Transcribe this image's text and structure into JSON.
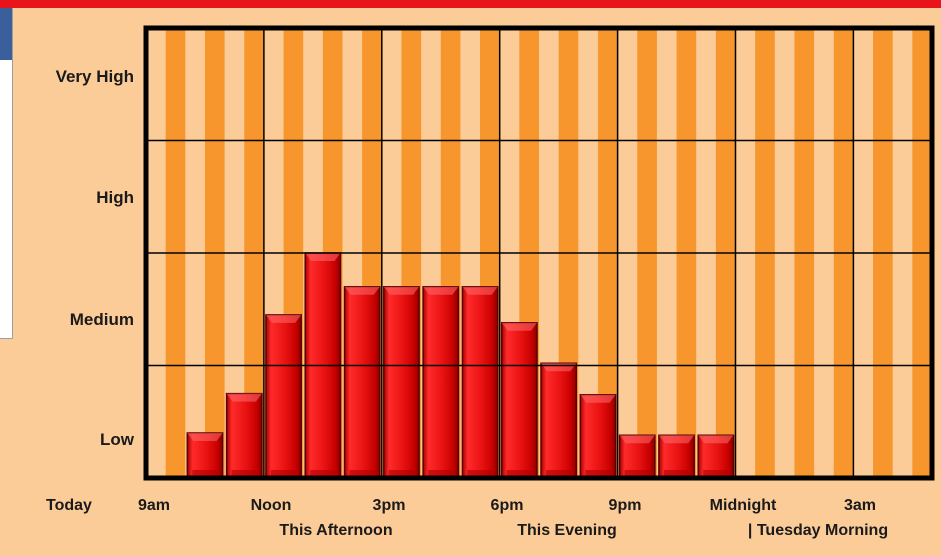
{
  "chart_data": {
    "type": "bar",
    "levels": [
      "Low",
      "Medium",
      "High",
      "Very High"
    ],
    "ylim": [
      0,
      4
    ],
    "y_levels_bottom_to_top": [
      "Low",
      "Medium",
      "High",
      "Very High"
    ],
    "x_start_label": "Today",
    "x_tick_labels": [
      "9am",
      "Noon",
      "3pm",
      "6pm",
      "9pm",
      "Midnight",
      "3am"
    ],
    "x_period_labels": [
      "This Afternoon",
      "This Evening",
      "| Tuesday Morning"
    ],
    "hours": [
      "9am",
      "10am",
      "11am",
      "Noon",
      "1pm",
      "2pm",
      "3pm",
      "4pm",
      "5pm",
      "6pm",
      "7pm",
      "8pm",
      "9pm",
      "10pm",
      "11pm",
      "Midnight",
      "1am",
      "2am",
      "3am",
      "4am"
    ],
    "values": [
      null,
      0.4,
      0.75,
      1.45,
      2.0,
      1.7,
      1.7,
      1.7,
      1.7,
      1.38,
      1.02,
      0.74,
      0.38,
      0.38,
      0.38,
      null,
      null,
      null,
      null,
      null
    ],
    "colors": {
      "bar": "#e81212",
      "bar_dark": "#8a0000",
      "band_light": "#fccc98",
      "band_dark": "#f6962d",
      "grid": "#000000",
      "top_bar": "#e8131b"
    }
  }
}
